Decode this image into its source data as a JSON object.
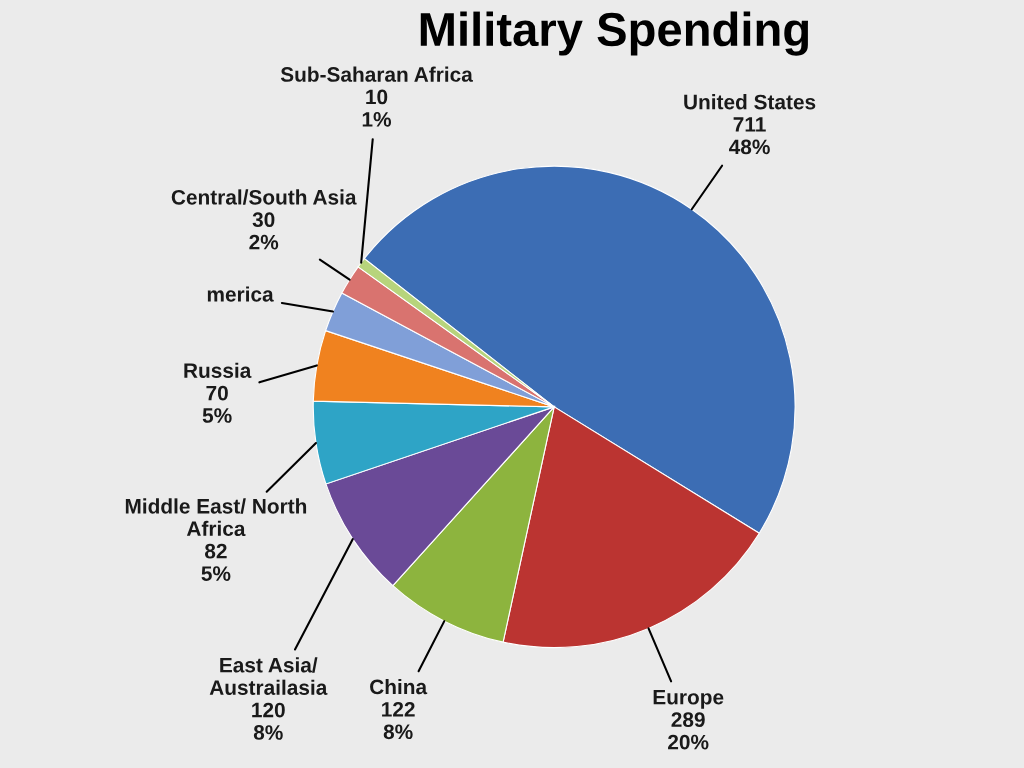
{
  "chart_data": {
    "type": "pie",
    "title": "Military Spending",
    "categories": [
      "United States",
      "Europe",
      "China",
      "East Asia/\nAustrailasia",
      "Middle East/ North\nAfrica",
      "Russia",
      "merica",
      "Central/South Asia",
      "Sub-Saharan Africa"
    ],
    "values": [
      711,
      289,
      122,
      120,
      82,
      70,
      40,
      30,
      10
    ],
    "value_labels": [
      "711\n48%",
      "289\n20%",
      "122\n8%",
      "120\n8%",
      "82\n5%",
      "70\n5%",
      null,
      "30\n2%",
      "10\n1%"
    ],
    "colors": [
      "#3c6db4",
      "#bb3431",
      "#8db43e",
      "#6a4a97",
      "#2ea4c6",
      "#f0821f",
      "#809fd8",
      "#d9736f",
      "#b7d47c"
    ],
    "legend": false
  }
}
